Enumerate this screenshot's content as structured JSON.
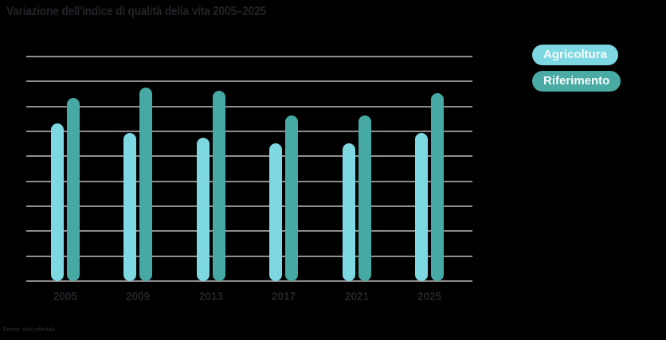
{
  "title": "Variazione dell'indice di qualità della vita 2005–2025",
  "source_note": "Fonte: dati ufficiali",
  "colors": {
    "background": "#000000",
    "text": "#232329",
    "gridline": "#8e8e8e",
    "axis_line": "#8e8a8a",
    "series_agricoltura": "#7ed8e1",
    "series_riferimento": "#47a9a3",
    "legend_text": "#f7fcfd"
  },
  "legend": {
    "position": "right",
    "items": [
      {
        "label": "Agricoltura",
        "color": "#7ed8e1"
      },
      {
        "label": "Riferimento",
        "color": "#4aaba5"
      }
    ]
  },
  "chart_data": {
    "type": "bar",
    "title": "Variazione dell'indice di qualità della vita 2005–2025",
    "categories": [
      "2005",
      "2009",
      "2013",
      "2017",
      "2021",
      "2025"
    ],
    "series": [
      {
        "name": "Agricoltura",
        "color": "#7ed8e1",
        "values": [
          63,
          59,
          57,
          55,
          55,
          59
        ]
      },
      {
        "name": "Riferimento",
        "color": "#47a9a3",
        "values": [
          73,
          77,
          76,
          66,
          66,
          75
        ]
      }
    ],
    "xlabel": "",
    "ylabel": "",
    "ylim": [
      0,
      90
    ],
    "gridline_step": 10,
    "y_tick_labels_visible": false,
    "grid": true,
    "legend_position": "right",
    "bar_style": "rounded-pill"
  }
}
